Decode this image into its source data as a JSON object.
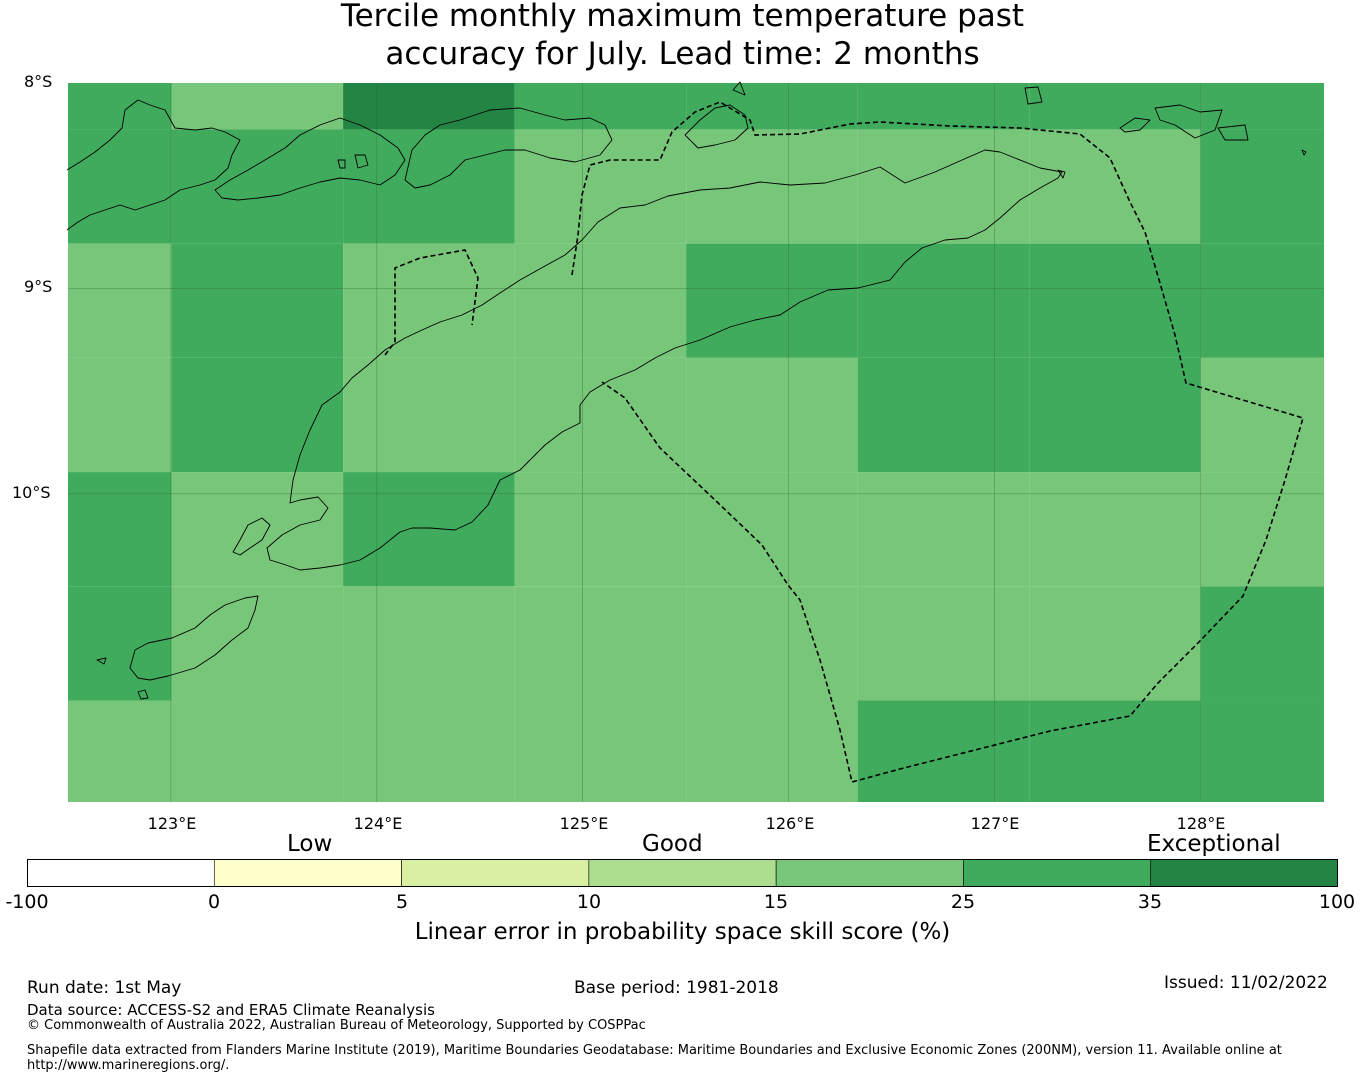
{
  "title": {
    "line1": "Tercile monthly maximum temperature past",
    "line2": "accuracy for July. Lead time: 2 months"
  },
  "map": {
    "lat_labels": [
      "8°S",
      "9°S",
      "10°S"
    ],
    "lon_labels": [
      "123°E",
      "124°E",
      "125°E",
      "126°E",
      "127°E",
      "128°E"
    ],
    "extent": {
      "lon": [
        122.5,
        128.6
      ],
      "lat": [
        -11.5,
        -8.0
      ]
    },
    "cell_size_deg": {
      "lon": 0.833,
      "lat": 0.556
    },
    "skill_grid": [
      [
        30,
        15,
        40,
        30,
        30,
        30,
        30,
        30
      ],
      [
        30,
        30,
        30,
        20,
        20,
        20,
        20,
        30
      ],
      [
        20,
        30,
        20,
        20,
        30,
        30,
        30,
        30
      ],
      [
        20,
        30,
        20,
        20,
        20,
        30,
        30,
        20
      ],
      [
        30,
        20,
        30,
        20,
        20,
        20,
        20,
        20
      ],
      [
        30,
        20,
        20,
        20,
        20,
        20,
        20,
        30
      ],
      [
        20,
        20,
        20,
        20,
        20,
        30,
        30,
        30
      ]
    ],
    "colors": {
      "land_outline": "#000000",
      "eez_boundary": "#000000",
      "gridline": "#2b5e2b"
    }
  },
  "colorbar": {
    "category_labels": [
      "Low",
      "Good",
      "Exceptional"
    ],
    "ticks": [
      "-100",
      "0",
      "5",
      "10",
      "15",
      "25",
      "35",
      "100"
    ],
    "bins": [
      {
        "from": -100,
        "to": 0,
        "color": "#ffffff"
      },
      {
        "from": 0,
        "to": 5,
        "color": "#ffffcc"
      },
      {
        "from": 5,
        "to": 10,
        "color": "#d9f0a3"
      },
      {
        "from": 10,
        "to": 15,
        "color": "#addd8e"
      },
      {
        "from": 15,
        "to": 25,
        "color": "#78c679"
      },
      {
        "from": 25,
        "to": 35,
        "color": "#41ab5d"
      },
      {
        "from": 35,
        "to": 100,
        "color": "#238443"
      }
    ],
    "label": "Linear error in probability space skill score (%)"
  },
  "footer": {
    "run_date": "Run date: 1st May",
    "base_period": "Base period: 1981-2018",
    "issued": "Issued: 11/02/2022",
    "data_source": "Data source: ACCESS-S2 and ERA5 Climate Reanalysis",
    "copyright": "© Commonwealth of Australia 2022, Australian Bureau of Meteorology, Supported by COSPPac",
    "shapefile_line1": "Shapefile data extracted from Flanders Marine Institute (2019), Maritime Boundaries Geodatabase: Maritime Boundaries and Exclusive Economic Zones (200NM), version 11. Available online at",
    "shapefile_line2": "http://www.marineregions.org/."
  }
}
